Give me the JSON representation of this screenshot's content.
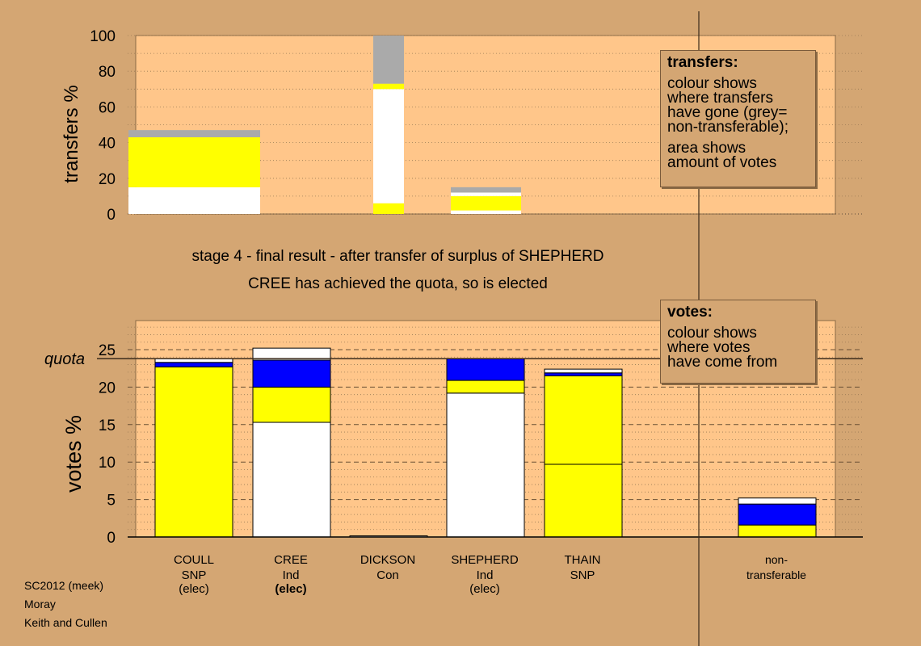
{
  "caption": {
    "line1": "stage 4 - final result - after transfer of surplus of SHEPHERD",
    "line2": "CREE has achieved the quota, so is elected"
  },
  "legend_transfers": {
    "title": "transfers:",
    "lines": [
      "colour shows",
      "where transfers",
      "have gone (grey=",
      "non-transferable);"
    ],
    "lines2": [
      "area shows",
      "amount of votes"
    ]
  },
  "legend_votes": {
    "title": "votes:",
    "lines": [
      "colour shows",
      "where votes",
      "have come from"
    ]
  },
  "footer": {
    "line1": "SC2012 (meek)",
    "line2": "Moray",
    "line3": "Keith and Cullen"
  },
  "colors": {
    "white": "#ffffff",
    "yellow": "#ffff00",
    "blue": "#0000ff",
    "grey": "#aaaaaa",
    "plot_bg": "#ffc68a",
    "page_bg": "#d4a673"
  },
  "chart_data": [
    {
      "type": "bar",
      "ylabel": "transfers %",
      "ylim": [
        0,
        100
      ],
      "yticks": [
        0,
        20,
        40,
        60,
        80,
        100
      ],
      "bars": [
        {
          "segments": [
            {
              "color": "white",
              "from": 0,
              "to": 15
            },
            {
              "color": "yellow",
              "from": 15,
              "to": 43
            },
            {
              "color": "grey",
              "from": 43,
              "to": 47
            }
          ]
        },
        {
          "segments": [
            {
              "color": "yellow",
              "from": 0,
              "to": 6
            },
            {
              "color": "white",
              "from": 6,
              "to": 70
            },
            {
              "color": "yellow",
              "from": 70,
              "to": 73
            },
            {
              "color": "grey",
              "from": 73,
              "to": 100
            }
          ]
        },
        {
          "segments": [
            {
              "color": "white",
              "from": 0,
              "to": 2
            },
            {
              "color": "yellow",
              "from": 2,
              "to": 10
            },
            {
              "color": "white",
              "from": 10,
              "to": 12
            },
            {
              "color": "grey",
              "from": 12,
              "to": 15
            }
          ]
        }
      ]
    },
    {
      "type": "bar",
      "ylabel": "votes %",
      "ylim": [
        0,
        25
      ],
      "yticks": [
        0,
        5,
        10,
        15,
        20,
        25
      ],
      "quota": 23.8,
      "quota_label": "quota",
      "candidates": [
        {
          "name": "COULL",
          "party": "SNP",
          "status": "(elec)",
          "bold_status": false,
          "segments": [
            {
              "color": "yellow",
              "from": 0,
              "to": 22.7
            },
            {
              "color": "blue",
              "from": 22.7,
              "to": 23.3
            },
            {
              "color": "white",
              "from": 23.3,
              "to": 23.8
            }
          ]
        },
        {
          "name": "CREE",
          "party": "Ind",
          "status": "(elec)",
          "bold_status": true,
          "segments": [
            {
              "color": "white",
              "from": 0,
              "to": 15.3
            },
            {
              "color": "yellow",
              "from": 15.3,
              "to": 20.0
            },
            {
              "color": "blue",
              "from": 20.0,
              "to": 23.6
            },
            {
              "color": "white",
              "from": 23.6,
              "to": 25.2
            }
          ]
        },
        {
          "name": "DICKSON",
          "party": "Con",
          "status": "",
          "bold_status": false,
          "segments": [
            {
              "color": "white",
              "from": 0,
              "to": 0.15
            }
          ]
        },
        {
          "name": "SHEPHERD",
          "party": "Ind",
          "status": "(elec)",
          "bold_status": false,
          "segments": [
            {
              "color": "white",
              "from": 0,
              "to": 19.2
            },
            {
              "color": "yellow",
              "from": 19.2,
              "to": 20.9
            },
            {
              "color": "blue",
              "from": 20.9,
              "to": 23.8
            }
          ]
        },
        {
          "name": "THAIN",
          "party": "SNP",
          "status": "",
          "bold_status": false,
          "segments": [
            {
              "color": "yellow",
              "from": 0,
              "to": 9.7
            },
            {
              "color": "yellow",
              "from": 9.7,
              "to": 21.5
            },
            {
              "color": "blue",
              "from": 21.5,
              "to": 21.9
            },
            {
              "color": "white",
              "from": 21.9,
              "to": 22.4
            }
          ]
        },
        {
          "name": "non-",
          "party": "transferable",
          "status": "",
          "bold_status": false,
          "segments": [
            {
              "color": "yellow",
              "from": 0,
              "to": 1.6
            },
            {
              "color": "blue",
              "from": 1.6,
              "to": 4.4
            },
            {
              "color": "white",
              "from": 4.4,
              "to": 5.2
            }
          ]
        }
      ]
    }
  ]
}
